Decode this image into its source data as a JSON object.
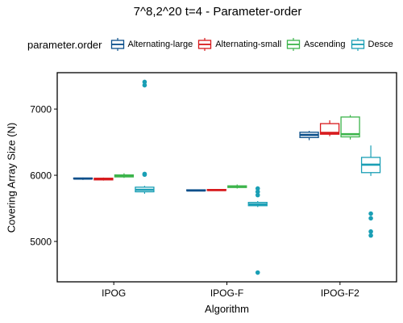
{
  "title": "7^8,2^20 t=4 - Parameter-order",
  "legend": {
    "title": "parameter.order",
    "items": [
      {
        "label": "Alternating-large",
        "color": "#0b4f8a"
      },
      {
        "label": "Alternating-small",
        "color": "#d7191c"
      },
      {
        "label": "Ascending",
        "color": "#3cb44b"
      },
      {
        "label": "Desce",
        "color": "#1a9fb5"
      }
    ]
  },
  "chart_data": {
    "type": "boxplot",
    "title": "7^8,2^20 t=4 - Parameter-order",
    "xlabel": "Algorithm",
    "ylabel": "Covering Array Size (N)",
    "categories": [
      "IPOG",
      "IPOG-F",
      "IPOG-F2"
    ],
    "ylim": [
      4390,
      7550
    ],
    "yticks": [
      5000,
      6000,
      7000
    ],
    "grid": false,
    "legend_position": "top",
    "series": [
      {
        "name": "Alternating-large",
        "color": "#0b4f8a",
        "boxes": [
          {
            "category": "IPOG",
            "min": 5930,
            "q1": 5945,
            "median": 5950,
            "q3": 5958,
            "max": 5965,
            "outliers": []
          },
          {
            "category": "IPOG-F",
            "min": 5760,
            "q1": 5765,
            "median": 5770,
            "q3": 5780,
            "max": 5785,
            "outliers": []
          },
          {
            "category": "IPOG-F2",
            "min": 6530,
            "q1": 6570,
            "median": 6610,
            "q3": 6650,
            "max": 6670,
            "outliers": []
          }
        ]
      },
      {
        "name": "Alternating-small",
        "color": "#d7191c",
        "boxes": [
          {
            "category": "IPOG",
            "min": 5920,
            "q1": 5930,
            "median": 5945,
            "q3": 5955,
            "max": 5965,
            "outliers": []
          },
          {
            "category": "IPOG-F",
            "min": 5765,
            "q1": 5770,
            "median": 5775,
            "q3": 5785,
            "max": 5790,
            "outliers": []
          },
          {
            "category": "IPOG-F2",
            "min": 6590,
            "q1": 6620,
            "median": 6640,
            "q3": 6780,
            "max": 6830,
            "outliers": []
          }
        ]
      },
      {
        "name": "Ascending",
        "color": "#3cb44b",
        "boxes": [
          {
            "category": "IPOG",
            "min": 5960,
            "q1": 5975,
            "median": 5990,
            "q3": 6005,
            "max": 6030,
            "outliers": []
          },
          {
            "category": "IPOG-F",
            "min": 5800,
            "q1": 5815,
            "median": 5830,
            "q3": 5840,
            "max": 5860,
            "outliers": []
          },
          {
            "category": "IPOG-F2",
            "min": 6540,
            "q1": 6580,
            "median": 6620,
            "q3": 6880,
            "max": 6910,
            "outliers": []
          }
        ]
      },
      {
        "name": "Desce",
        "color": "#1a9fb5",
        "boxes": [
          {
            "category": "IPOG",
            "min": 5720,
            "q1": 5750,
            "median": 5780,
            "q3": 5820,
            "max": 5840,
            "outliers": [
              6020,
              6010,
              7360,
              7410
            ]
          },
          {
            "category": "IPOG-F",
            "min": 5520,
            "q1": 5540,
            "median": 5560,
            "q3": 5590,
            "max": 5610,
            "outliers": [
              5800,
              5750,
              5700,
              4530
            ]
          },
          {
            "category": "IPOG-F2",
            "min": 5990,
            "q1": 6040,
            "median": 6160,
            "q3": 6270,
            "max": 6450,
            "outliers": [
              5420,
              5350,
              5150,
              5090
            ]
          }
        ]
      }
    ]
  }
}
